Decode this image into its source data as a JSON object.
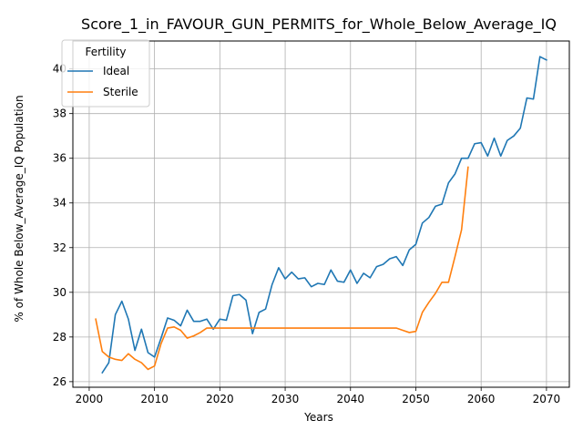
{
  "chart_data": {
    "type": "line",
    "title": "Score_1_in_FAVOUR_GUN_PERMITS_for_Whole_Below_Average_IQ",
    "xlabel": "Years",
    "ylabel": "% of Whole Below_Average_IQ Population",
    "xlim": [
      1997.5,
      2073.5
    ],
    "ylim": [
      25.75,
      41.25
    ],
    "xticks": [
      2000,
      2010,
      2020,
      2030,
      2040,
      2050,
      2060,
      2070
    ],
    "yticks": [
      26,
      28,
      30,
      32,
      34,
      36,
      38,
      40
    ],
    "grid": true,
    "legend": {
      "title": "Fertility",
      "position": "top-left"
    },
    "series": [
      {
        "name": "Ideal",
        "color": "#1f77b4",
        "x": [
          2002,
          2003,
          2004,
          2005,
          2006,
          2007,
          2008,
          2009,
          2010,
          2011,
          2012,
          2013,
          2014,
          2015,
          2016,
          2017,
          2018,
          2019,
          2020,
          2021,
          2022,
          2023,
          2024,
          2025,
          2026,
          2027,
          2028,
          2029,
          2030,
          2031,
          2032,
          2033,
          2034,
          2035,
          2036,
          2037,
          2038,
          2039,
          2040,
          2041,
          2042,
          2043,
          2044,
          2045,
          2046,
          2047,
          2048,
          2049,
          2050,
          2051,
          2052,
          2053,
          2054,
          2055,
          2056,
          2057,
          2058,
          2059,
          2060,
          2061,
          2062,
          2063,
          2064,
          2065,
          2066,
          2067,
          2068,
          2069,
          2070
        ],
        "y": [
          26.4,
          26.85,
          29.0,
          29.6,
          28.8,
          27.4,
          28.35,
          27.3,
          27.1,
          27.95,
          28.85,
          28.75,
          28.5,
          29.2,
          28.7,
          28.7,
          28.8,
          28.35,
          28.8,
          28.75,
          29.85,
          29.9,
          29.65,
          28.15,
          29.1,
          29.25,
          30.35,
          31.1,
          30.6,
          30.9,
          30.6,
          30.65,
          30.25,
          30.4,
          30.35,
          31.0,
          30.5,
          30.45,
          31.0,
          30.4,
          30.85,
          30.65,
          31.15,
          31.25,
          31.5,
          31.6,
          31.2,
          31.9,
          32.15,
          33.1,
          33.35,
          33.85,
          33.95,
          34.9,
          35.3,
          36.0,
          36.0,
          36.65,
          36.7,
          36.1,
          36.9,
          36.1,
          36.8,
          37.0,
          37.35,
          38.7,
          38.65,
          40.55,
          40.4
        ]
      },
      {
        "name": "Sterile",
        "color": "#ff7f0e",
        "x": [
          2001,
          2002,
          2003,
          2004,
          2005,
          2006,
          2007,
          2008,
          2009,
          2010,
          2011,
          2012,
          2013,
          2014,
          2015,
          2016,
          2017,
          2018,
          2019,
          2020,
          2021,
          2022,
          2023,
          2024,
          2025,
          2026,
          2027,
          2028,
          2029,
          2030,
          2031,
          2032,
          2033,
          2034,
          2035,
          2036,
          2037,
          2038,
          2039,
          2040,
          2041,
          2042,
          2043,
          2044,
          2045,
          2046,
          2047,
          2048,
          2049,
          2050,
          2051,
          2052,
          2053,
          2054,
          2055,
          2056,
          2057,
          2058
        ],
        "y": [
          28.8,
          27.35,
          27.1,
          27.0,
          26.95,
          27.25,
          27.0,
          26.85,
          26.55,
          26.7,
          27.7,
          28.4,
          28.45,
          28.3,
          27.95,
          28.05,
          28.2,
          28.4,
          28.4,
          28.4,
          28.4,
          28.4,
          28.4,
          28.4,
          28.4,
          28.4,
          28.4,
          28.4,
          28.4,
          28.4,
          28.4,
          28.4,
          28.4,
          28.4,
          28.4,
          28.4,
          28.4,
          28.4,
          28.4,
          28.4,
          28.4,
          28.4,
          28.4,
          28.4,
          28.4,
          28.4,
          28.4,
          28.3,
          28.2,
          28.25,
          29.1,
          29.55,
          29.95,
          30.45,
          30.45,
          31.6,
          32.8,
          35.6
        ]
      }
    ]
  }
}
